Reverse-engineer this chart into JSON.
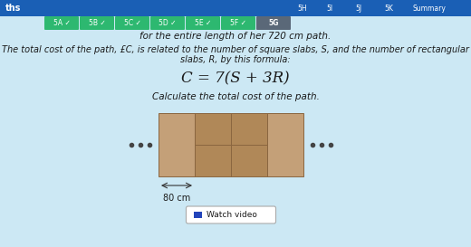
{
  "bg_color": "#cce8f4",
  "nav_top_color": "#1a5fb5",
  "nav_green_color": "#2db870",
  "nav_grey_color": "#5a6878",
  "nav_items_green": [
    "5A",
    "5B",
    "5C",
    "5D",
    "5E",
    "5F"
  ],
  "nav_item_active": "5G",
  "nav_items_plain": [
    "5H",
    "5I",
    "5J",
    "5K",
    "Summary"
  ],
  "text1": "for the entire length of her 720 cm path.",
  "text2a": "The total cost of the path, £C, is related to the number of square slabs, S, and the number of rectangular",
  "text2b": "slabs, R, by this formula:",
  "formula": "C = 7(S + 3R)",
  "text3": "Calculate the total cost of the path.",
  "label_80cm": "80 cm",
  "slab_color_light": "#c4a078",
  "slab_color_dark": "#b08858",
  "slab_border_color": "#8a6640",
  "dots_color": "#444444",
  "watch_video_text": "Watch video",
  "title_left": "ths"
}
